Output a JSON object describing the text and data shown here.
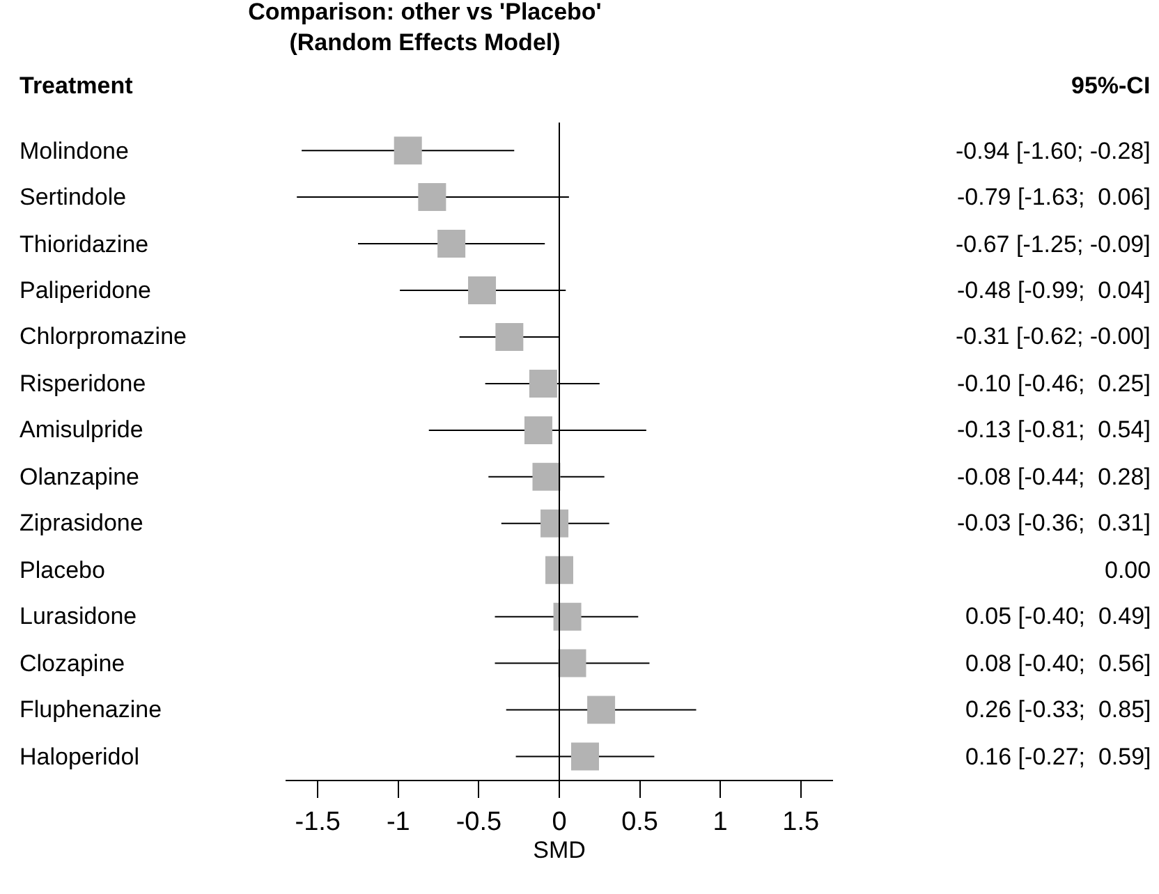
{
  "chart_data": {
    "type": "scatter",
    "orientation": "horizontal",
    "title": "Comparison: other vs 'Placebo'\n(Random Effects Model)",
    "ylabel": "Treatment",
    "xlabel": "SMD",
    "annotations": [
      "95%-CI"
    ],
    "categories": [
      "Molindone",
      "Sertindole",
      "Thioridazine",
      "Paliperidone",
      "Chlorpromazine",
      "Risperidone",
      "Amisulpride",
      "Olanzapine",
      "Ziprasidone",
      "Placebo",
      "Lurasidone",
      "Clozapine",
      "Fluphenazine",
      "Haloperidol"
    ],
    "values": [
      -0.94,
      -0.79,
      -0.67,
      -0.48,
      -0.31,
      -0.1,
      -0.13,
      -0.08,
      -0.03,
      0.0,
      0.05,
      0.08,
      0.26,
      0.16
    ],
    "errors": [
      [
        -1.6,
        -0.28
      ],
      [
        -1.63,
        0.06
      ],
      [
        -1.25,
        -0.09
      ],
      [
        -0.99,
        0.04
      ],
      [
        -0.62,
        -0.0
      ],
      [
        -0.46,
        0.25
      ],
      [
        -0.81,
        0.54
      ],
      [
        -0.44,
        0.28
      ],
      [
        -0.36,
        0.31
      ],
      null,
      [
        -0.4,
        0.49
      ],
      [
        -0.4,
        0.56
      ],
      [
        -0.33,
        0.85
      ],
      [
        -0.27,
        0.59
      ]
    ],
    "value_labels": [
      "-0.94 [-1.60; -0.28]",
      "-0.79 [-1.63;  0.06]",
      "-0.67 [-1.25; -0.09]",
      "-0.48 [-0.99;  0.04]",
      "-0.31 [-0.62; -0.00]",
      "-0.10 [-0.46;  0.25]",
      "-0.13 [-0.81;  0.54]",
      "-0.08 [-0.44;  0.28]",
      "-0.03 [-0.36;  0.31]",
      "0.00",
      "0.05 [-0.40;  0.49]",
      "0.08 [-0.40;  0.56]",
      "0.26 [-0.33;  0.85]",
      "0.16 [-0.27;  0.59]"
    ],
    "color": "#b3b3b3",
    "marker": "square",
    "xlim": [
      -1.7,
      1.7
    ],
    "xticks": [
      -1.5,
      -1,
      -0.5,
      0,
      0.5,
      1,
      1.5
    ],
    "ref_lines": [
      {
        "axis": "x",
        "value": 0,
        "color": "#000000"
      }
    ],
    "legend": false
  }
}
